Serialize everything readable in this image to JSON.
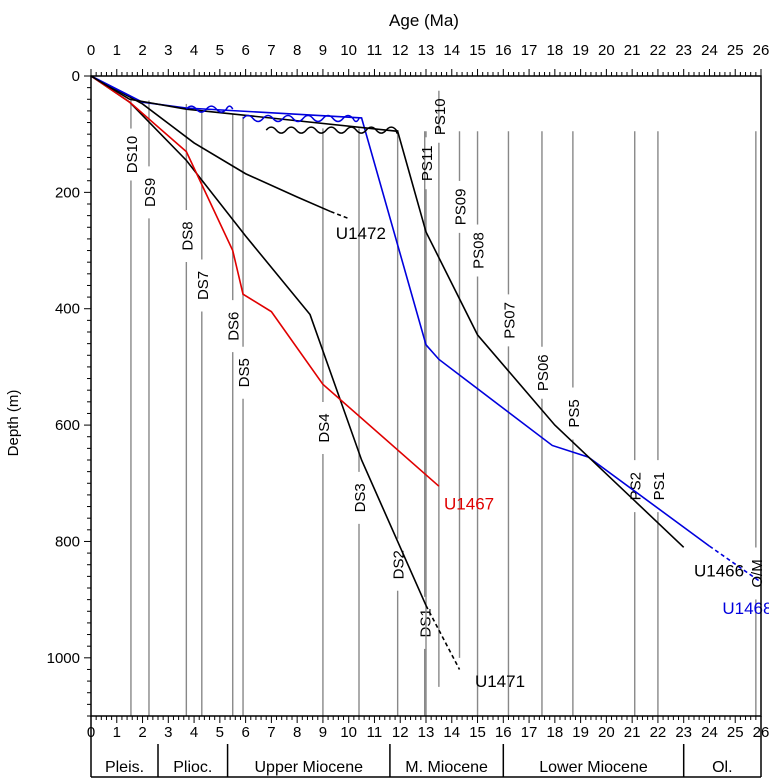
{
  "chart_data": {
    "type": "line",
    "xlabel": "Age (Ma)",
    "ylabel": "Depth (m)",
    "xlim": [
      0,
      26
    ],
    "ylim": [
      0,
      1100
    ],
    "y_reversed": true,
    "x_axis_position": "top and bottom",
    "xticks": [
      0,
      1,
      2,
      3,
      4,
      5,
      6,
      7,
      8,
      9,
      10,
      11,
      12,
      13,
      14,
      15,
      16,
      17,
      18,
      19,
      20,
      21,
      22,
      23,
      24,
      25,
      26
    ],
    "yticks": [
      0,
      200,
      400,
      600,
      800,
      1000
    ],
    "grid": false,
    "series": [
      {
        "name": "U1472",
        "color": "#000000",
        "points": [
          [
            0,
            0
          ],
          [
            2,
            48
          ],
          [
            4,
            115
          ],
          [
            6,
            168
          ],
          [
            8,
            208
          ],
          [
            9.3,
            233
          ]
        ],
        "extrapolated": [
          [
            9.3,
            233
          ],
          [
            10,
            245
          ]
        ]
      },
      {
        "name": "U1471",
        "color": "#000000",
        "points": [
          [
            0,
            0
          ],
          [
            1.5,
            45
          ],
          [
            3.7,
            145
          ],
          [
            6,
            275
          ],
          [
            8.5,
            410
          ],
          [
            10.5,
            660
          ],
          [
            13,
            910
          ]
        ],
        "extrapolated": [
          [
            13,
            910
          ],
          [
            14.3,
            1020
          ]
        ]
      },
      {
        "name": "U1467",
        "color": "#e00000",
        "points": [
          [
            0,
            0
          ],
          [
            1.5,
            45
          ],
          [
            3.7,
            130
          ],
          [
            5.5,
            300
          ],
          [
            5.9,
            375
          ],
          [
            7,
            405
          ],
          [
            9,
            530
          ],
          [
            13.5,
            705
          ]
        ]
      },
      {
        "name": "U1468",
        "color": "#0000dd",
        "points": [
          [
            0,
            0
          ],
          [
            2,
            45
          ],
          [
            3.7,
            55
          ],
          [
            10.5,
            72
          ],
          [
            13,
            462
          ],
          [
            13.5,
            487
          ],
          [
            17.9,
            635
          ],
          [
            19.3,
            655
          ],
          [
            24,
            808
          ]
        ],
        "extrapolated": [
          [
            24,
            808
          ],
          [
            26,
            870
          ]
        ]
      },
      {
        "name": "U1466",
        "color": "#000000",
        "points": [
          [
            0,
            0
          ],
          [
            1.5,
            40
          ],
          [
            3.7,
            57
          ],
          [
            11.9,
            95
          ],
          [
            13,
            268
          ],
          [
            15,
            445
          ],
          [
            18,
            600
          ],
          [
            23,
            810
          ]
        ]
      }
    ],
    "unconformities": [
      {
        "series": "U1468",
        "x_range": [
          3.7,
          5.5
        ],
        "depth": 57
      },
      {
        "series": "U1468",
        "x_range": [
          5.9,
          10.4
        ],
        "depth": 73
      },
      {
        "series": "U1466",
        "x_range": [
          6.8,
          11.9
        ],
        "depth": 93
      }
    ],
    "reference_lines": [
      {
        "label": "DS10",
        "age": 1.55,
        "label_depth": 135,
        "bottom_depth": 1100
      },
      {
        "label": "DS9",
        "age": 2.25,
        "label_depth": 200,
        "bottom_depth": 1100
      },
      {
        "label": "DS8",
        "age": 3.7,
        "label_depth": 275,
        "bottom_depth": 1100
      },
      {
        "label": "DS7",
        "age": 4.3,
        "label_depth": 360,
        "bottom_depth": 1100
      },
      {
        "label": "DS6",
        "age": 5.5,
        "label_depth": 430,
        "bottom_depth": 1100
      },
      {
        "label": "DS5",
        "age": 5.9,
        "label_depth": 510,
        "bottom_depth": 1100
      },
      {
        "label": "DS4",
        "age": 9.0,
        "label_depth": 605,
        "bottom_depth": 1100
      },
      {
        "label": "DS3",
        "age": 10.4,
        "label_depth": 725,
        "bottom_depth": 1100
      },
      {
        "label": "DS2",
        "age": 11.9,
        "label_depth": 840,
        "bottom_depth": 1100
      },
      {
        "label": "DS1",
        "age": 12.95,
        "label_depth": 940,
        "bottom_depth": 1100
      },
      {
        "label": "PS11",
        "age": 13.0,
        "label_depth": 150,
        "bottom_depth": 1100
      },
      {
        "label": "PS10",
        "age": 13.5,
        "label_depth": 70,
        "bottom_depth": 1050
      },
      {
        "label": "PS09",
        "age": 14.3,
        "label_depth": 225,
        "bottom_depth": 1000
      },
      {
        "label": "PS08",
        "age": 15.0,
        "label_depth": 300,
        "bottom_depth": 1100
      },
      {
        "label": "PS07",
        "age": 16.2,
        "label_depth": 420,
        "bottom_depth": 1100
      },
      {
        "label": "PS06",
        "age": 17.5,
        "label_depth": 510,
        "bottom_depth": 1100
      },
      {
        "label": "PS5",
        "age": 18.7,
        "label_depth": 580,
        "bottom_depth": 1100
      },
      {
        "label": "PS2",
        "age": 21.1,
        "label_depth": 705,
        "bottom_depth": 1100
      },
      {
        "label": "PS1",
        "age": 22.0,
        "label_depth": 705,
        "bottom_depth": 1100
      },
      {
        "label": "O/M",
        "age": 25.8,
        "label_depth": 855,
        "bottom_depth": 1100
      }
    ],
    "reference_lines_topped": [
      {
        "age": 1.55,
        "top_depth": 35
      },
      {
        "age": 2.25,
        "top_depth": 42
      },
      {
        "age": 3.7,
        "top_depth": 48
      },
      {
        "age": 4.3,
        "top_depth": 63
      },
      {
        "age": 5.5,
        "top_depth": 66
      },
      {
        "age": 5.9,
        "top_depth": 70
      },
      {
        "age": 9.0,
        "top_depth": 90
      },
      {
        "age": 10.4,
        "top_depth": 90
      },
      {
        "age": 11.9,
        "top_depth": 95
      },
      {
        "age": 12.95,
        "top_depth": 95
      },
      {
        "age": 13.0,
        "top_depth": 95
      },
      {
        "age": 13.5,
        "top_depth": 95
      },
      {
        "age": 14.3,
        "top_depth": 95
      },
      {
        "age": 15.0,
        "top_depth": 95
      },
      {
        "age": 16.2,
        "top_depth": 95
      },
      {
        "age": 17.5,
        "top_depth": 95
      },
      {
        "age": 18.7,
        "top_depth": 95
      },
      {
        "age": 21.1,
        "top_depth": 95
      },
      {
        "age": 22.0,
        "top_depth": 95
      },
      {
        "age": 25.8,
        "top_depth": 95
      }
    ],
    "series_labels": [
      {
        "text": "U1472",
        "color": "#000000",
        "age": 9.5,
        "depth": 280
      },
      {
        "text": "U1467",
        "color": "#e00000",
        "age": 13.7,
        "depth": 745
      },
      {
        "text": "U1466",
        "color": "#000000",
        "age": 23.4,
        "depth": 860
      },
      {
        "text": "U1468",
        "color": "#0000dd",
        "age": 24.5,
        "depth": 925
      },
      {
        "text": "U1471",
        "color": "#000000",
        "age": 14.9,
        "depth": 1050
      }
    ],
    "epochs": [
      {
        "name": "Pleis.",
        "start": 0,
        "end": 2.6
      },
      {
        "name": "Plioc.",
        "start": 2.6,
        "end": 5.3
      },
      {
        "name": "Upper Miocene",
        "start": 5.3,
        "end": 11.6
      },
      {
        "name": "M. Miocene",
        "start": 11.6,
        "end": 16.0
      },
      {
        "name": "Lower Miocene",
        "start": 16.0,
        "end": 23.0
      },
      {
        "name": "Ol.",
        "start": 23.0,
        "end": 26
      }
    ]
  }
}
